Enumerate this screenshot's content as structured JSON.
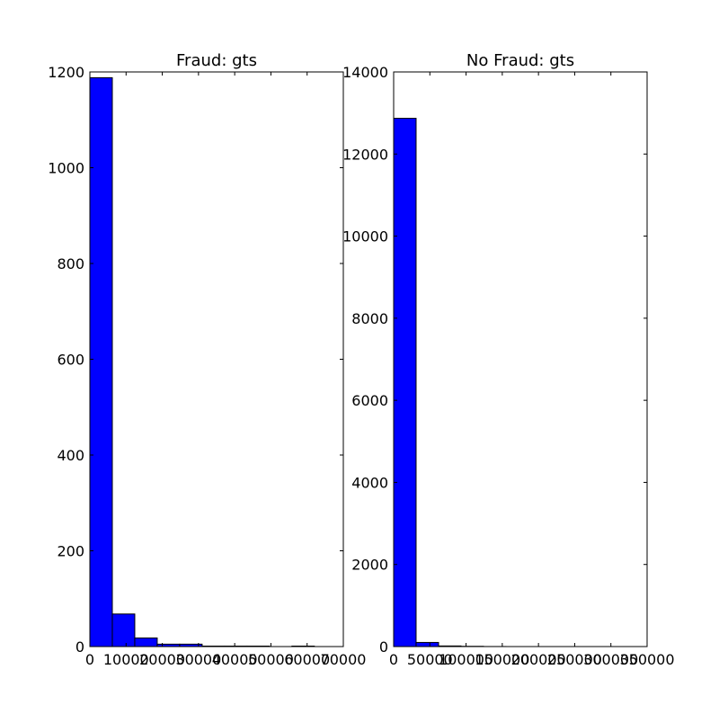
{
  "chart_data": [
    {
      "type": "bar",
      "title": "Fraud: gts",
      "xlabel": "",
      "ylabel": "",
      "xlim": [
        0,
        70000
      ],
      "ylim": [
        0,
        1200
      ],
      "x_ticks": [
        0,
        10000,
        20000,
        30000,
        40000,
        50000,
        60000,
        70000
      ],
      "x_tick_labels": [
        "0",
        "10000",
        "20000",
        "30000",
        "40000",
        "50000",
        "60000",
        "70000"
      ],
      "y_ticks": [
        0,
        200,
        400,
        600,
        800,
        1000,
        1200
      ],
      "y_tick_labels": [
        "0",
        "200",
        "400",
        "600",
        "800",
        "1000",
        "1200"
      ],
      "bin_edges": [
        0,
        6200,
        12400,
        18600,
        24800,
        31000,
        37200,
        43400,
        49600,
        55800,
        62000
      ],
      "values": [
        1188,
        68,
        18,
        5,
        5,
        1,
        1,
        1,
        0,
        1
      ],
      "bar_color": "#0000ff",
      "grid": false
    },
    {
      "type": "bar",
      "title": "No Fraud: gts",
      "xlabel": "",
      "ylabel": "",
      "xlim": [
        0,
        350000
      ],
      "ylim": [
        0,
        14000
      ],
      "x_ticks": [
        0,
        50000,
        100000,
        150000,
        200000,
        250000,
        300000,
        350000
      ],
      "x_tick_labels": [
        "0",
        "50000",
        "100000",
        "150000",
        "200000",
        "250000",
        "300000",
        "350000"
      ],
      "y_ticks": [
        0,
        2000,
        4000,
        6000,
        8000,
        10000,
        12000,
        14000
      ],
      "y_tick_labels": [
        "0",
        "2000",
        "4000",
        "6000",
        "8000",
        "10000",
        "12000",
        "14000"
      ],
      "bin_edges": [
        0,
        31000,
        62000,
        93000,
        124000,
        155000,
        186000,
        217000,
        248000,
        279000,
        310000
      ],
      "values": [
        12870,
        100,
        15,
        6,
        1,
        0,
        0,
        0,
        0,
        0
      ],
      "bar_color": "#0000ff",
      "grid": false
    }
  ]
}
